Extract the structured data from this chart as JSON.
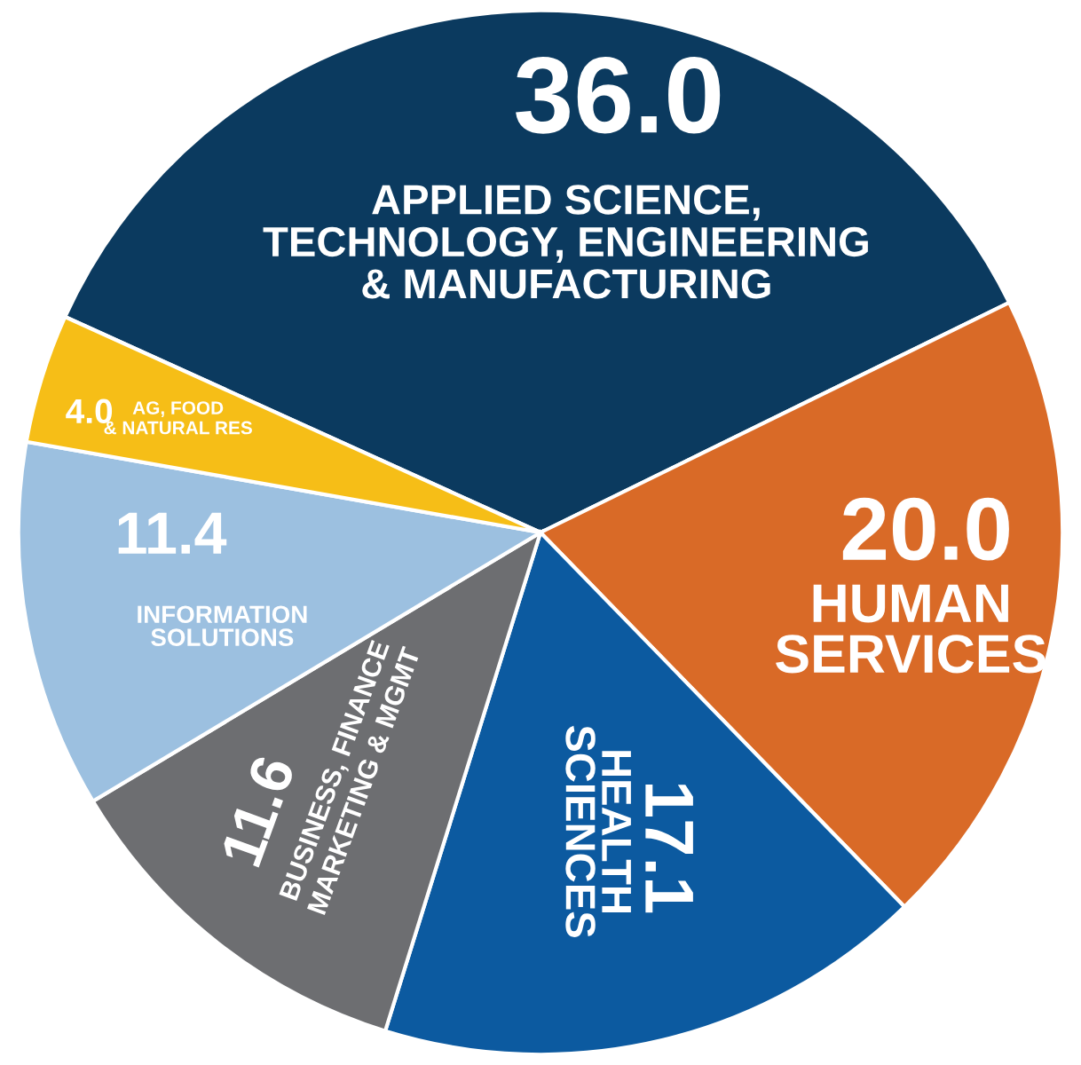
{
  "chart_data": {
    "type": "pie",
    "categories": [
      "APPLIED SCIENCE,\nTECHNOLOGY, ENGINEERING\n& MANUFACTURING",
      "HUMAN\nSERVICES",
      "HEALTH\nSCIENCES",
      "BUSINESS, FINANCE\nMARKETING & MGMT",
      "INFORMATION\nSOLUTIONS",
      "AG, FOOD\n& NATURAL RES"
    ],
    "values": [
      36.0,
      20.0,
      17.1,
      11.6,
      11.4,
      4.0
    ],
    "colors": [
      "#0b3a5f",
      "#d96a27",
      "#0c5aa0",
      "#6d6e71",
      "#9cc0e0",
      "#f6be17"
    ],
    "value_labels": [
      "36.0",
      "20.0",
      "17.1",
      "11.6",
      "11.4",
      "4.0"
    ],
    "legend": false
  }
}
